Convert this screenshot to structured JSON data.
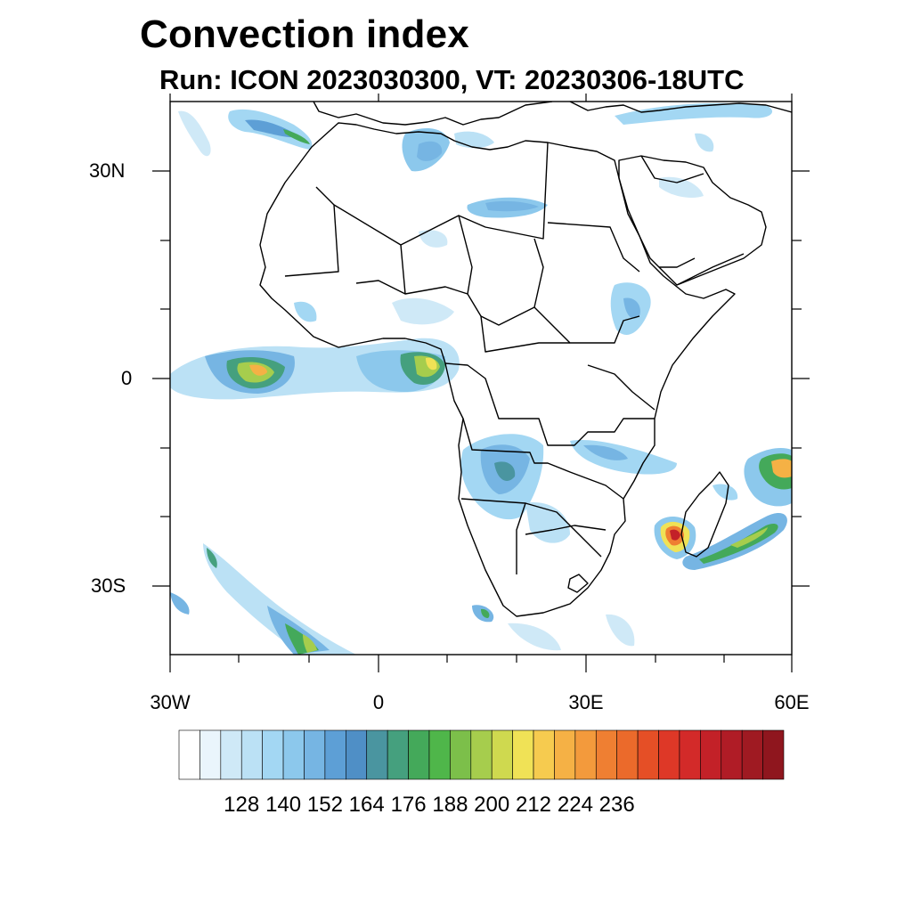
{
  "title": "Convection index",
  "subtitle": "Run: ICON 2023030300,  VT: 20230306-18UTC",
  "map": {
    "lat_ticks": [
      {
        "label": "30N",
        "lat": 30
      },
      {
        "label": "0",
        "lat": 0
      },
      {
        "label": "30S",
        "lat": -30
      }
    ],
    "lon_ticks": [
      {
        "label": "30W",
        "lon": -30
      },
      {
        "label": "0",
        "lon": 0
      },
      {
        "label": "30E",
        "lon": 30
      },
      {
        "label": "60E",
        "lon": 60
      }
    ],
    "extent": {
      "lon_min": -30,
      "lon_max": 60,
      "lat_min": -40,
      "lat_max": 40
    }
  },
  "colorbar": {
    "labels": [
      "128",
      "140",
      "152",
      "164",
      "176",
      "188",
      "200",
      "212",
      "224",
      "236"
    ],
    "colors": [
      "#ffffff",
      "#eaf5fc",
      "#cfe9f7",
      "#bbe1f5",
      "#a3d7f3",
      "#8cc8ec",
      "#76b5e3",
      "#5d9fd6",
      "#4f8fc6",
      "#4a95a0",
      "#45a07e",
      "#44a95a",
      "#4fb64a",
      "#7cbf4a",
      "#a6cd4d",
      "#cfd94f",
      "#f0e256",
      "#f6cb4f",
      "#f5b145",
      "#f39a3c",
      "#ef7f32",
      "#eb6a2b",
      "#e54f26",
      "#de3827",
      "#d32a29",
      "#c32128",
      "#b01c26",
      "#9f1a22",
      "#8f161e"
    ]
  }
}
